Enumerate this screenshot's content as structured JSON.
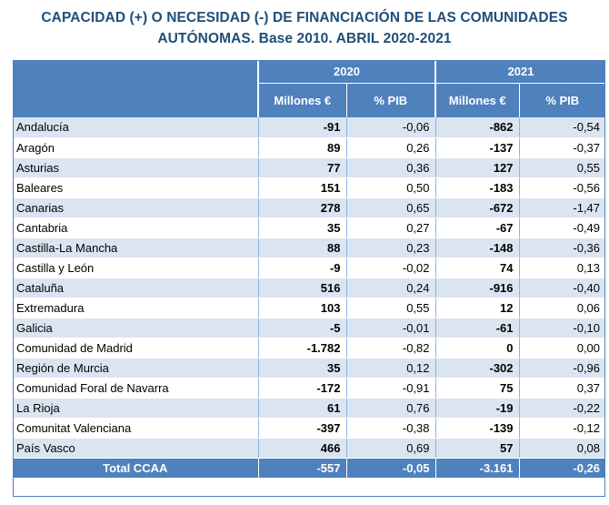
{
  "title_line1": "CAPACIDAD (+) O NECESIDAD (-) DE FINANCIACIÓN DE LAS COMUNIDADES",
  "title_line2": "AUTÓNOMAS. Base 2010. ABRIL  2020-2021",
  "years": [
    "2020",
    "2021"
  ],
  "col_headers": {
    "m20": "Millones €",
    "p20": "% PIB",
    "m21": "Millones €",
    "p21": "% PIB"
  },
  "rows": [
    {
      "name": "Andalucía",
      "m20": "-91",
      "p20": "-0,06",
      "m21": "-862",
      "p21": "-0,54"
    },
    {
      "name": "Aragón",
      "m20": "89",
      "p20": "0,26",
      "m21": "-137",
      "p21": "-0,37"
    },
    {
      "name": "Asturias",
      "m20": "77",
      "p20": "0,36",
      "m21": "127",
      "p21": "0,55"
    },
    {
      "name": "Baleares",
      "m20": "151",
      "p20": "0,50",
      "m21": "-183",
      "p21": "-0,56"
    },
    {
      "name": "Canarias",
      "m20": "278",
      "p20": "0,65",
      "m21": "-672",
      "p21": "-1,47"
    },
    {
      "name": "Cantabria",
      "m20": "35",
      "p20": "0,27",
      "m21": "-67",
      "p21": "-0,49"
    },
    {
      "name": "Castilla-La Mancha",
      "m20": "88",
      "p20": "0,23",
      "m21": "-148",
      "p21": "-0,36"
    },
    {
      "name": "Castilla y León",
      "m20": "-9",
      "p20": "-0,02",
      "m21": "74",
      "p21": "0,13"
    },
    {
      "name": "Cataluña",
      "m20": "516",
      "p20": "0,24",
      "m21": "-916",
      "p21": "-0,40"
    },
    {
      "name": "Extremadura",
      "m20": "103",
      "p20": "0,55",
      "m21": "12",
      "p21": "0,06"
    },
    {
      "name": "Galicia",
      "m20": "-5",
      "p20": "-0,01",
      "m21": "-61",
      "p21": "-0,10"
    },
    {
      "name": "Comunidad de Madrid",
      "m20": "-1.782",
      "p20": "-0,82",
      "m21": "0",
      "p21": "0,00"
    },
    {
      "name": "Región de Murcia",
      "m20": "35",
      "p20": "0,12",
      "m21": "-302",
      "p21": "-0,96"
    },
    {
      "name": "Comunidad Foral de Navarra",
      "m20": "-172",
      "p20": "-0,91",
      "m21": "75",
      "p21": "0,37"
    },
    {
      "name": "La Rioja",
      "m20": "61",
      "p20": "0,76",
      "m21": "-19",
      "p21": "-0,22"
    },
    {
      "name": "Comunitat Valenciana",
      "m20": "-397",
      "p20": "-0,38",
      "m21": "-139",
      "p21": "-0,12"
    },
    {
      "name": "País Vasco",
      "m20": "466",
      "p20": "0,69",
      "m21": "57",
      "p21": "0,08"
    }
  ],
  "total": {
    "name": "Total CCAA",
    "m20": "-557",
    "p20": "-0,05",
    "m21": "-3.161",
    "p21": "-0,26"
  }
}
